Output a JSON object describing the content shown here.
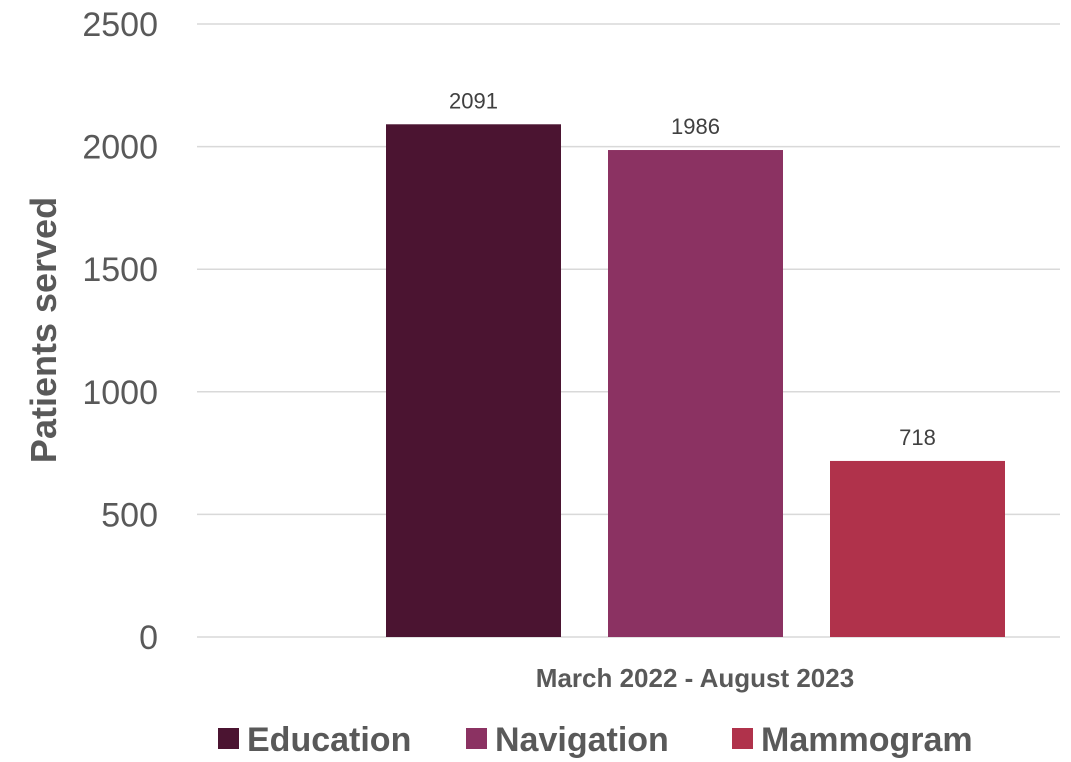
{
  "chart_data": {
    "type": "bar",
    "categories": [
      "March 2022 - August 2023"
    ],
    "series": [
      {
        "name": "Education",
        "values": [
          2091
        ],
        "color": "#4b1431"
      },
      {
        "name": "Navigation",
        "values": [
          1986
        ],
        "color": "#8b3262"
      },
      {
        "name": "Mammogram",
        "values": [
          718
        ],
        "color": "#b0324b"
      }
    ],
    "title": "",
    "xlabel": "",
    "ylabel": "Patients served",
    "ylim": [
      0,
      2500
    ],
    "yticks": [
      0,
      500,
      1000,
      1500,
      2000,
      2500
    ],
    "grid": true,
    "legend": "bottom",
    "data_labels": true
  }
}
